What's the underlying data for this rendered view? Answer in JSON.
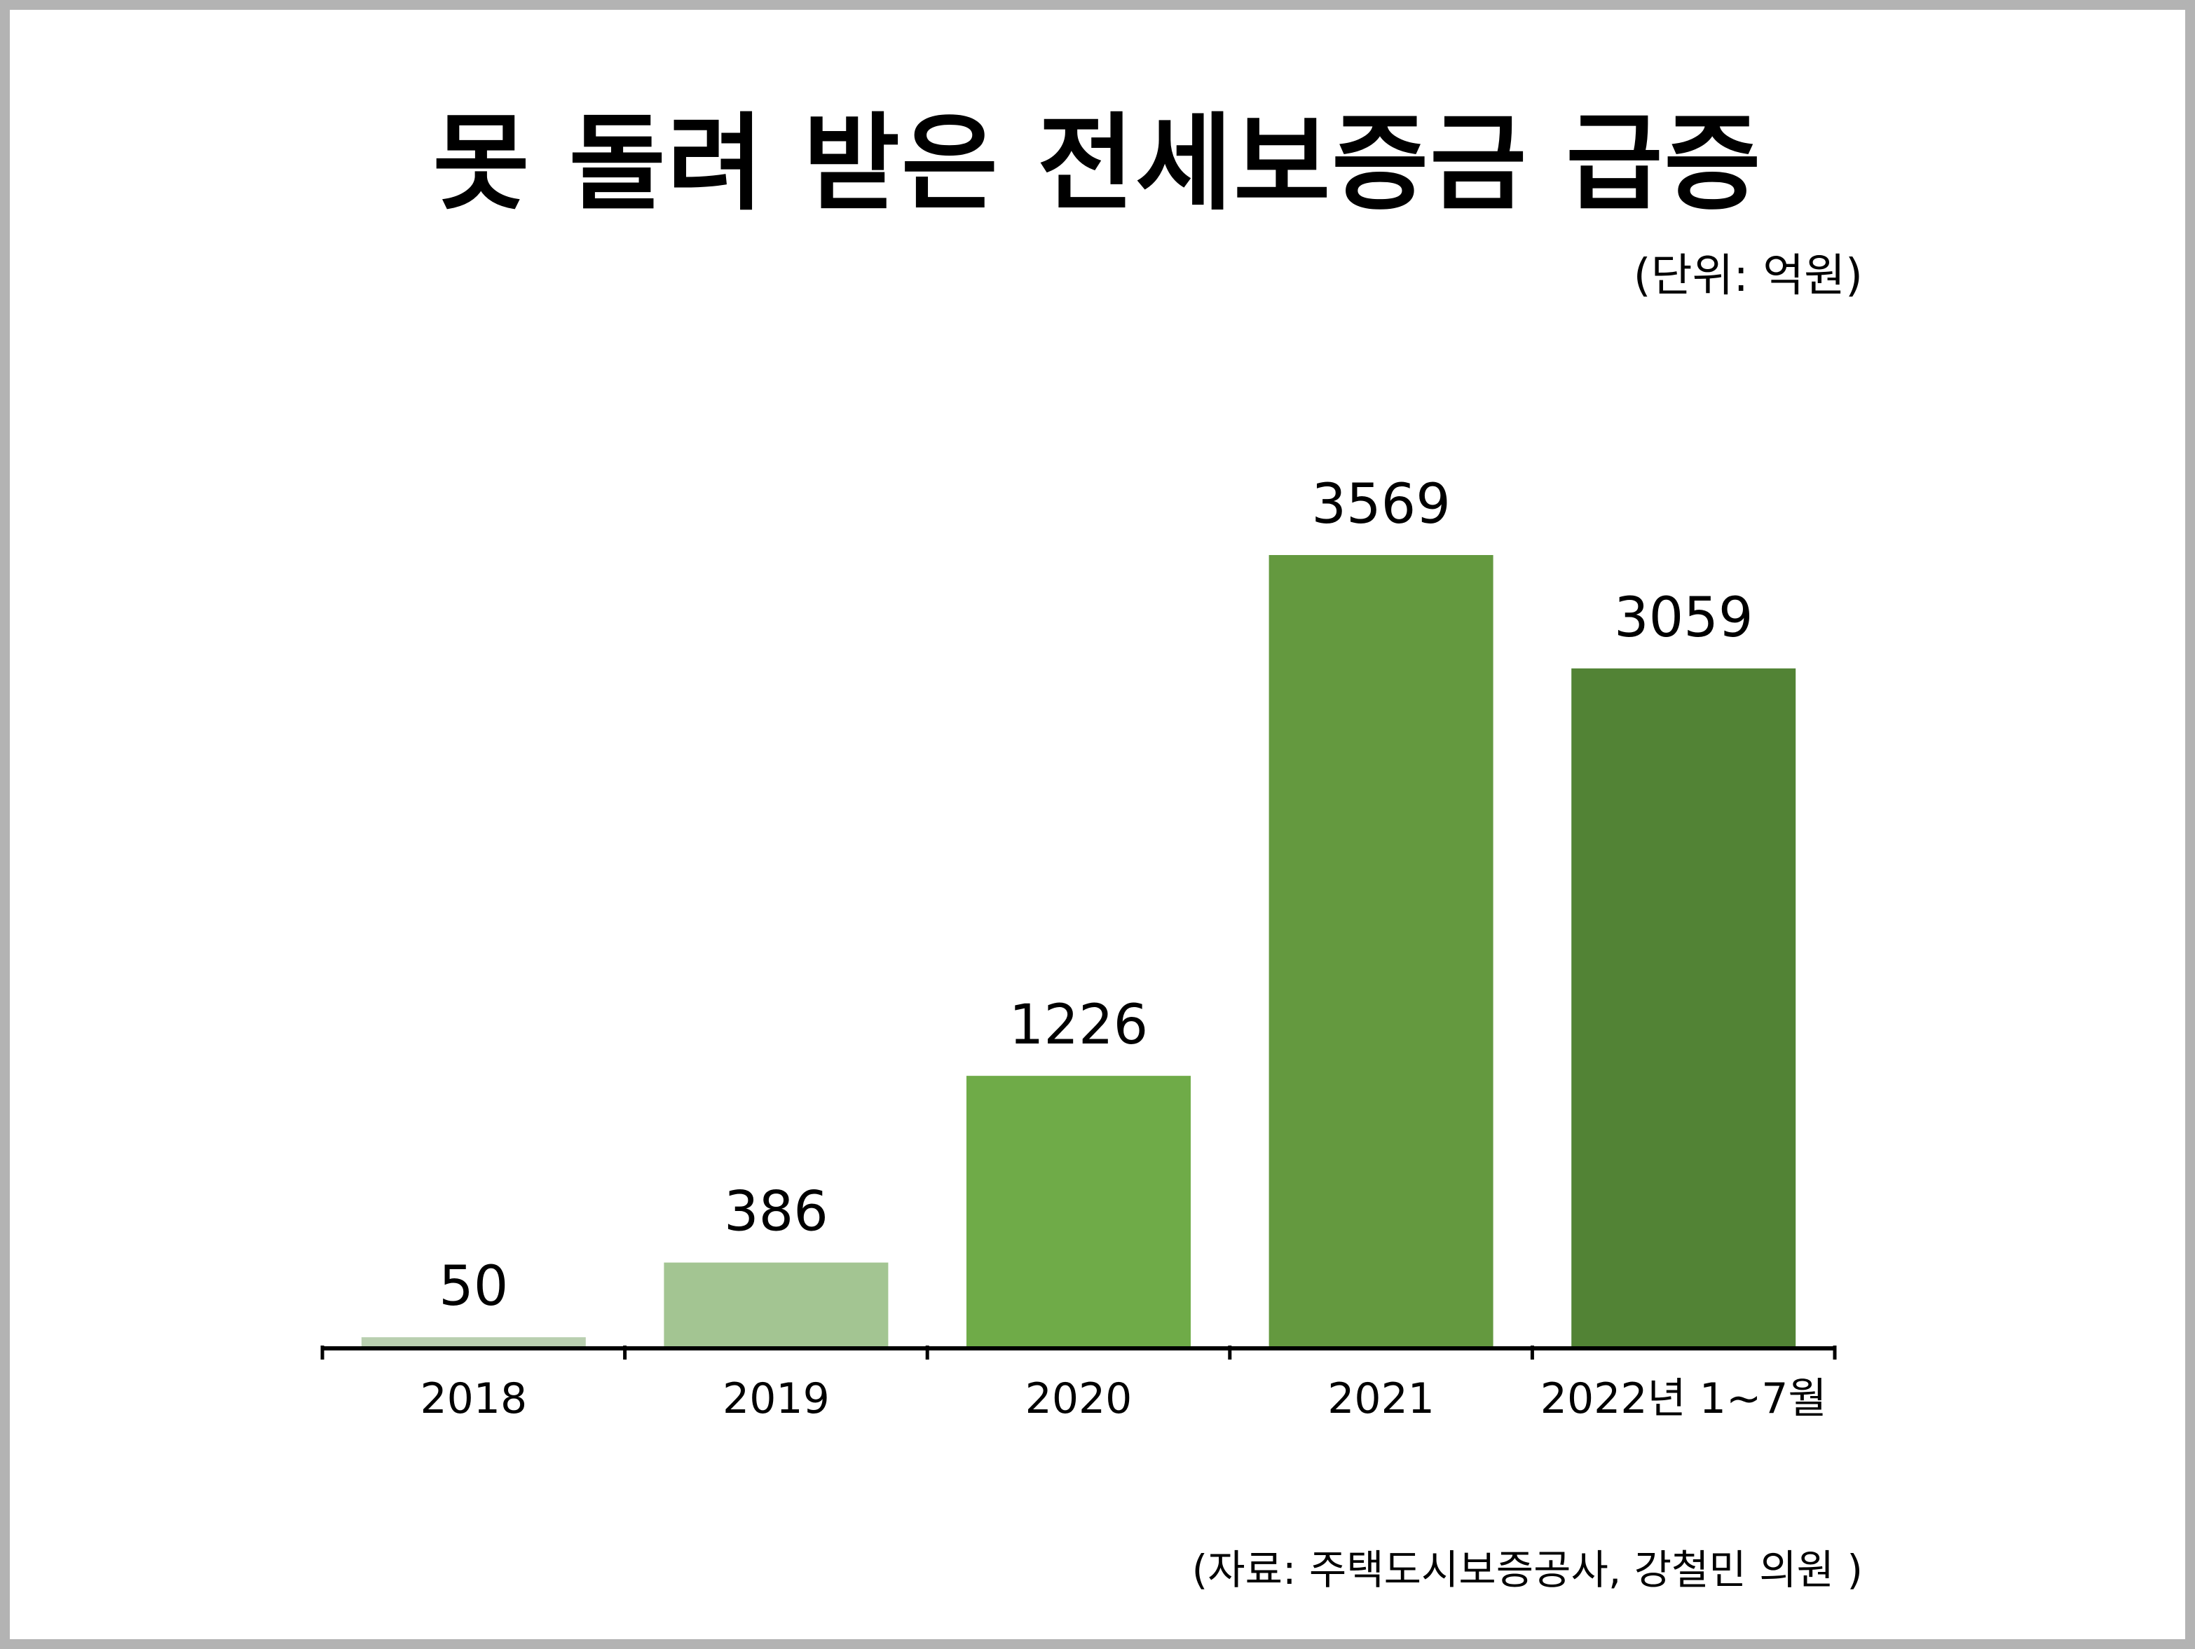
{
  "title": "못 돌려 받은 전세보증금 급증",
  "unit_note": "(단위: 억원)",
  "source_note": "(자료: 주택도시보증공사, 강철민 의원 )",
  "colors": {
    "axis": "#000000",
    "bars": [
      "#b9cfb0",
      "#a3c592",
      "#6fab48",
      "#64993f",
      "#528335"
    ]
  },
  "chart_data": {
    "type": "bar",
    "title": "못 돌려 받은 전세보증금 급증",
    "xlabel": "",
    "ylabel": "",
    "categories": [
      "2018",
      "2019",
      "2020",
      "2021",
      "2022년 1~7월"
    ],
    "values": [
      50,
      386,
      1226,
      3569,
      3059
    ],
    "value_labels": [
      "50",
      "386",
      "1226",
      "3569",
      "3059"
    ],
    "ylim": [
      0,
      3569
    ],
    "grid": false,
    "legend": "none"
  }
}
